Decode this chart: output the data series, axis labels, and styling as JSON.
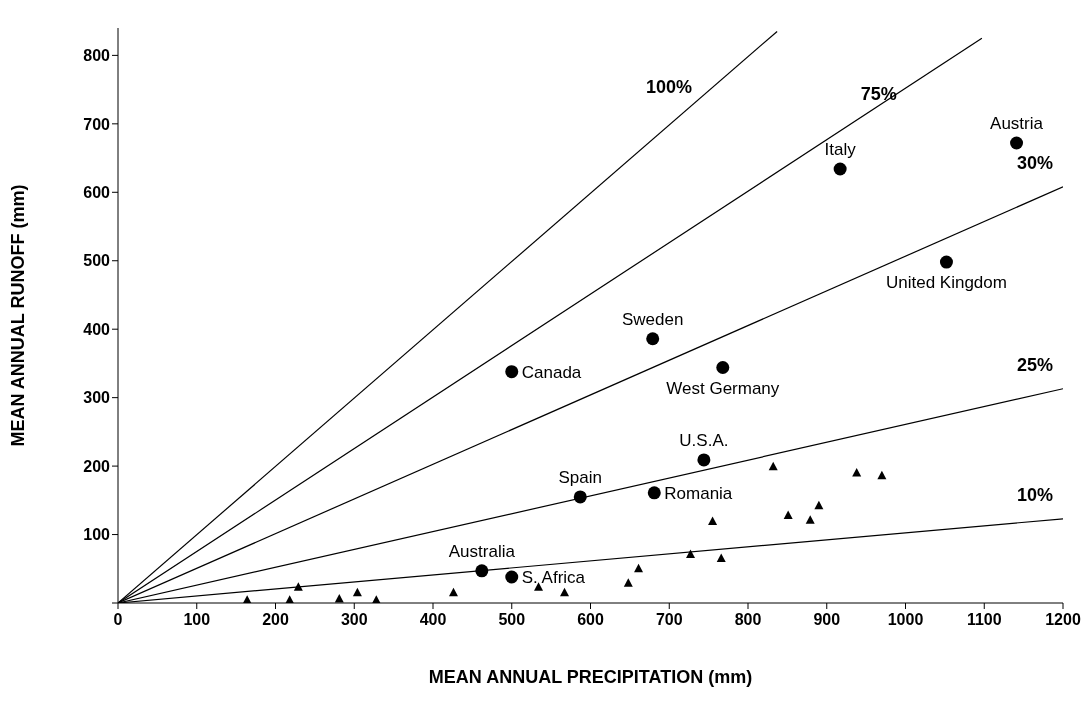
{
  "chart_data": {
    "type": "scatter",
    "xlabel": "MEAN ANNUAL PRECIPITATION (mm)",
    "ylabel": "MEAN ANNUAL RUNOFF (mm)",
    "xlim": [
      0,
      1200
    ],
    "ylim": [
      0,
      840
    ],
    "xticks": [
      0,
      100,
      200,
      300,
      400,
      500,
      600,
      700,
      800,
      900,
      1000,
      1100,
      1200
    ],
    "yticks": [
      {
        "value": 0,
        "label": null
      },
      100,
      200,
      300,
      400,
      500,
      600,
      700,
      800
    ],
    "grid": false,
    "legend": false,
    "series": [
      {
        "type": "scatter",
        "marker": "circle",
        "color": "#000000",
        "x": [
          1141,
          917,
          1052,
          679,
          500,
          768,
          744,
          587,
          681,
          462,
          500
        ],
        "values": [
          672,
          634,
          498,
          386,
          338,
          344,
          209,
          155,
          161,
          47,
          38
        ],
        "value_labels": [
          "Austria",
          "Italy",
          "United Kingdom",
          "Sweden",
          "Canada",
          "West Germany",
          "U.S.A.",
          "Spain",
          "Romania",
          "Australia",
          "S. Africa"
        ]
      },
      {
        "type": "scatter",
        "marker": "triangle",
        "color": "#000000",
        "x": [
          164,
          218,
          229,
          281,
          304,
          328,
          426,
          534,
          567,
          648,
          661,
          727,
          755,
          766,
          832,
          851,
          879,
          890,
          938,
          970
        ],
        "values": [
          4,
          4,
          23,
          6,
          15,
          4,
          15,
          23,
          15,
          29,
          50,
          71,
          119,
          65,
          199,
          128,
          121,
          142,
          190,
          186
        ]
      },
      {
        "type": "line",
        "name": "100%",
        "color": "#000000",
        "marker": "none",
        "x": [
          0,
          837
        ],
        "values": [
          0,
          835
        ]
      },
      {
        "type": "line",
        "name": "75%",
        "color": "#000000",
        "marker": "none",
        "x": [
          0,
          1097
        ],
        "values": [
          0,
          825
        ]
      },
      {
        "type": "line",
        "name": "30%",
        "color": "#000000",
        "marker": "none",
        "x": [
          0,
          1200
        ],
        "values": [
          0,
          608
        ]
      },
      {
        "type": "line",
        "name": "25%",
        "color": "#000000",
        "marker": "none",
        "x": [
          0,
          1200
        ],
        "values": [
          0,
          313
        ]
      },
      {
        "type": "line",
        "name": "10%",
        "color": "#000000",
        "marker": "none",
        "x": [
          0,
          1200
        ],
        "values": [
          0,
          123
        ]
      }
    ]
  }
}
